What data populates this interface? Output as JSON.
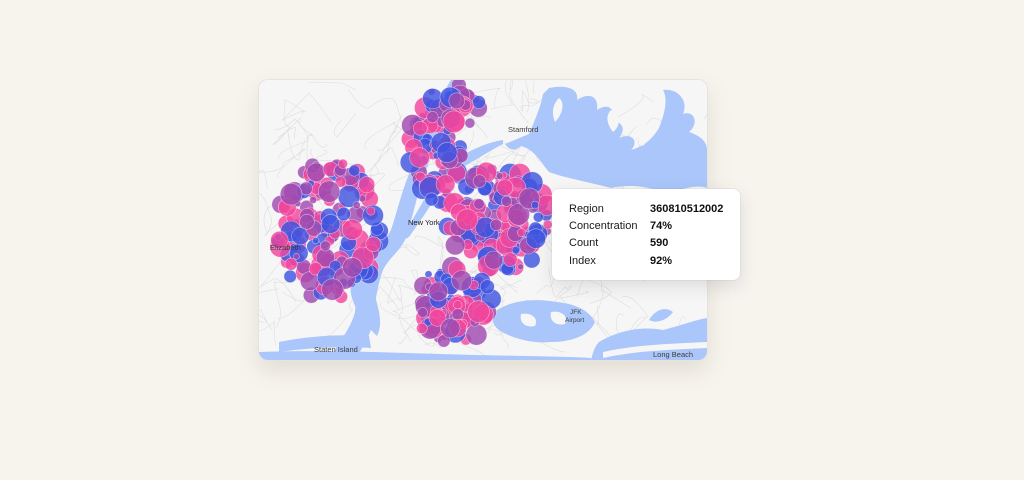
{
  "map": {
    "places": {
      "stamford": "Stamford",
      "new_york": "New York",
      "elizabeth": "Elizabeth",
      "jfk": "JFK",
      "airport": "Airport",
      "staten_island": "Staten Island",
      "long_beach": "Long Beach"
    },
    "colors": {
      "blue": "#4054e0",
      "pink": "#f2469c",
      "purple": "#a04ab0",
      "water": "#aac6fa",
      "land": "#f6f6f6"
    },
    "legend_shown": false
  },
  "tooltip": {
    "rows": [
      {
        "label": "Region",
        "value": "360810512002"
      },
      {
        "label": "Concentration",
        "value": "74%"
      },
      {
        "label": "Count",
        "value": "590"
      },
      {
        "label": "Index",
        "value": "92%"
      }
    ]
  }
}
